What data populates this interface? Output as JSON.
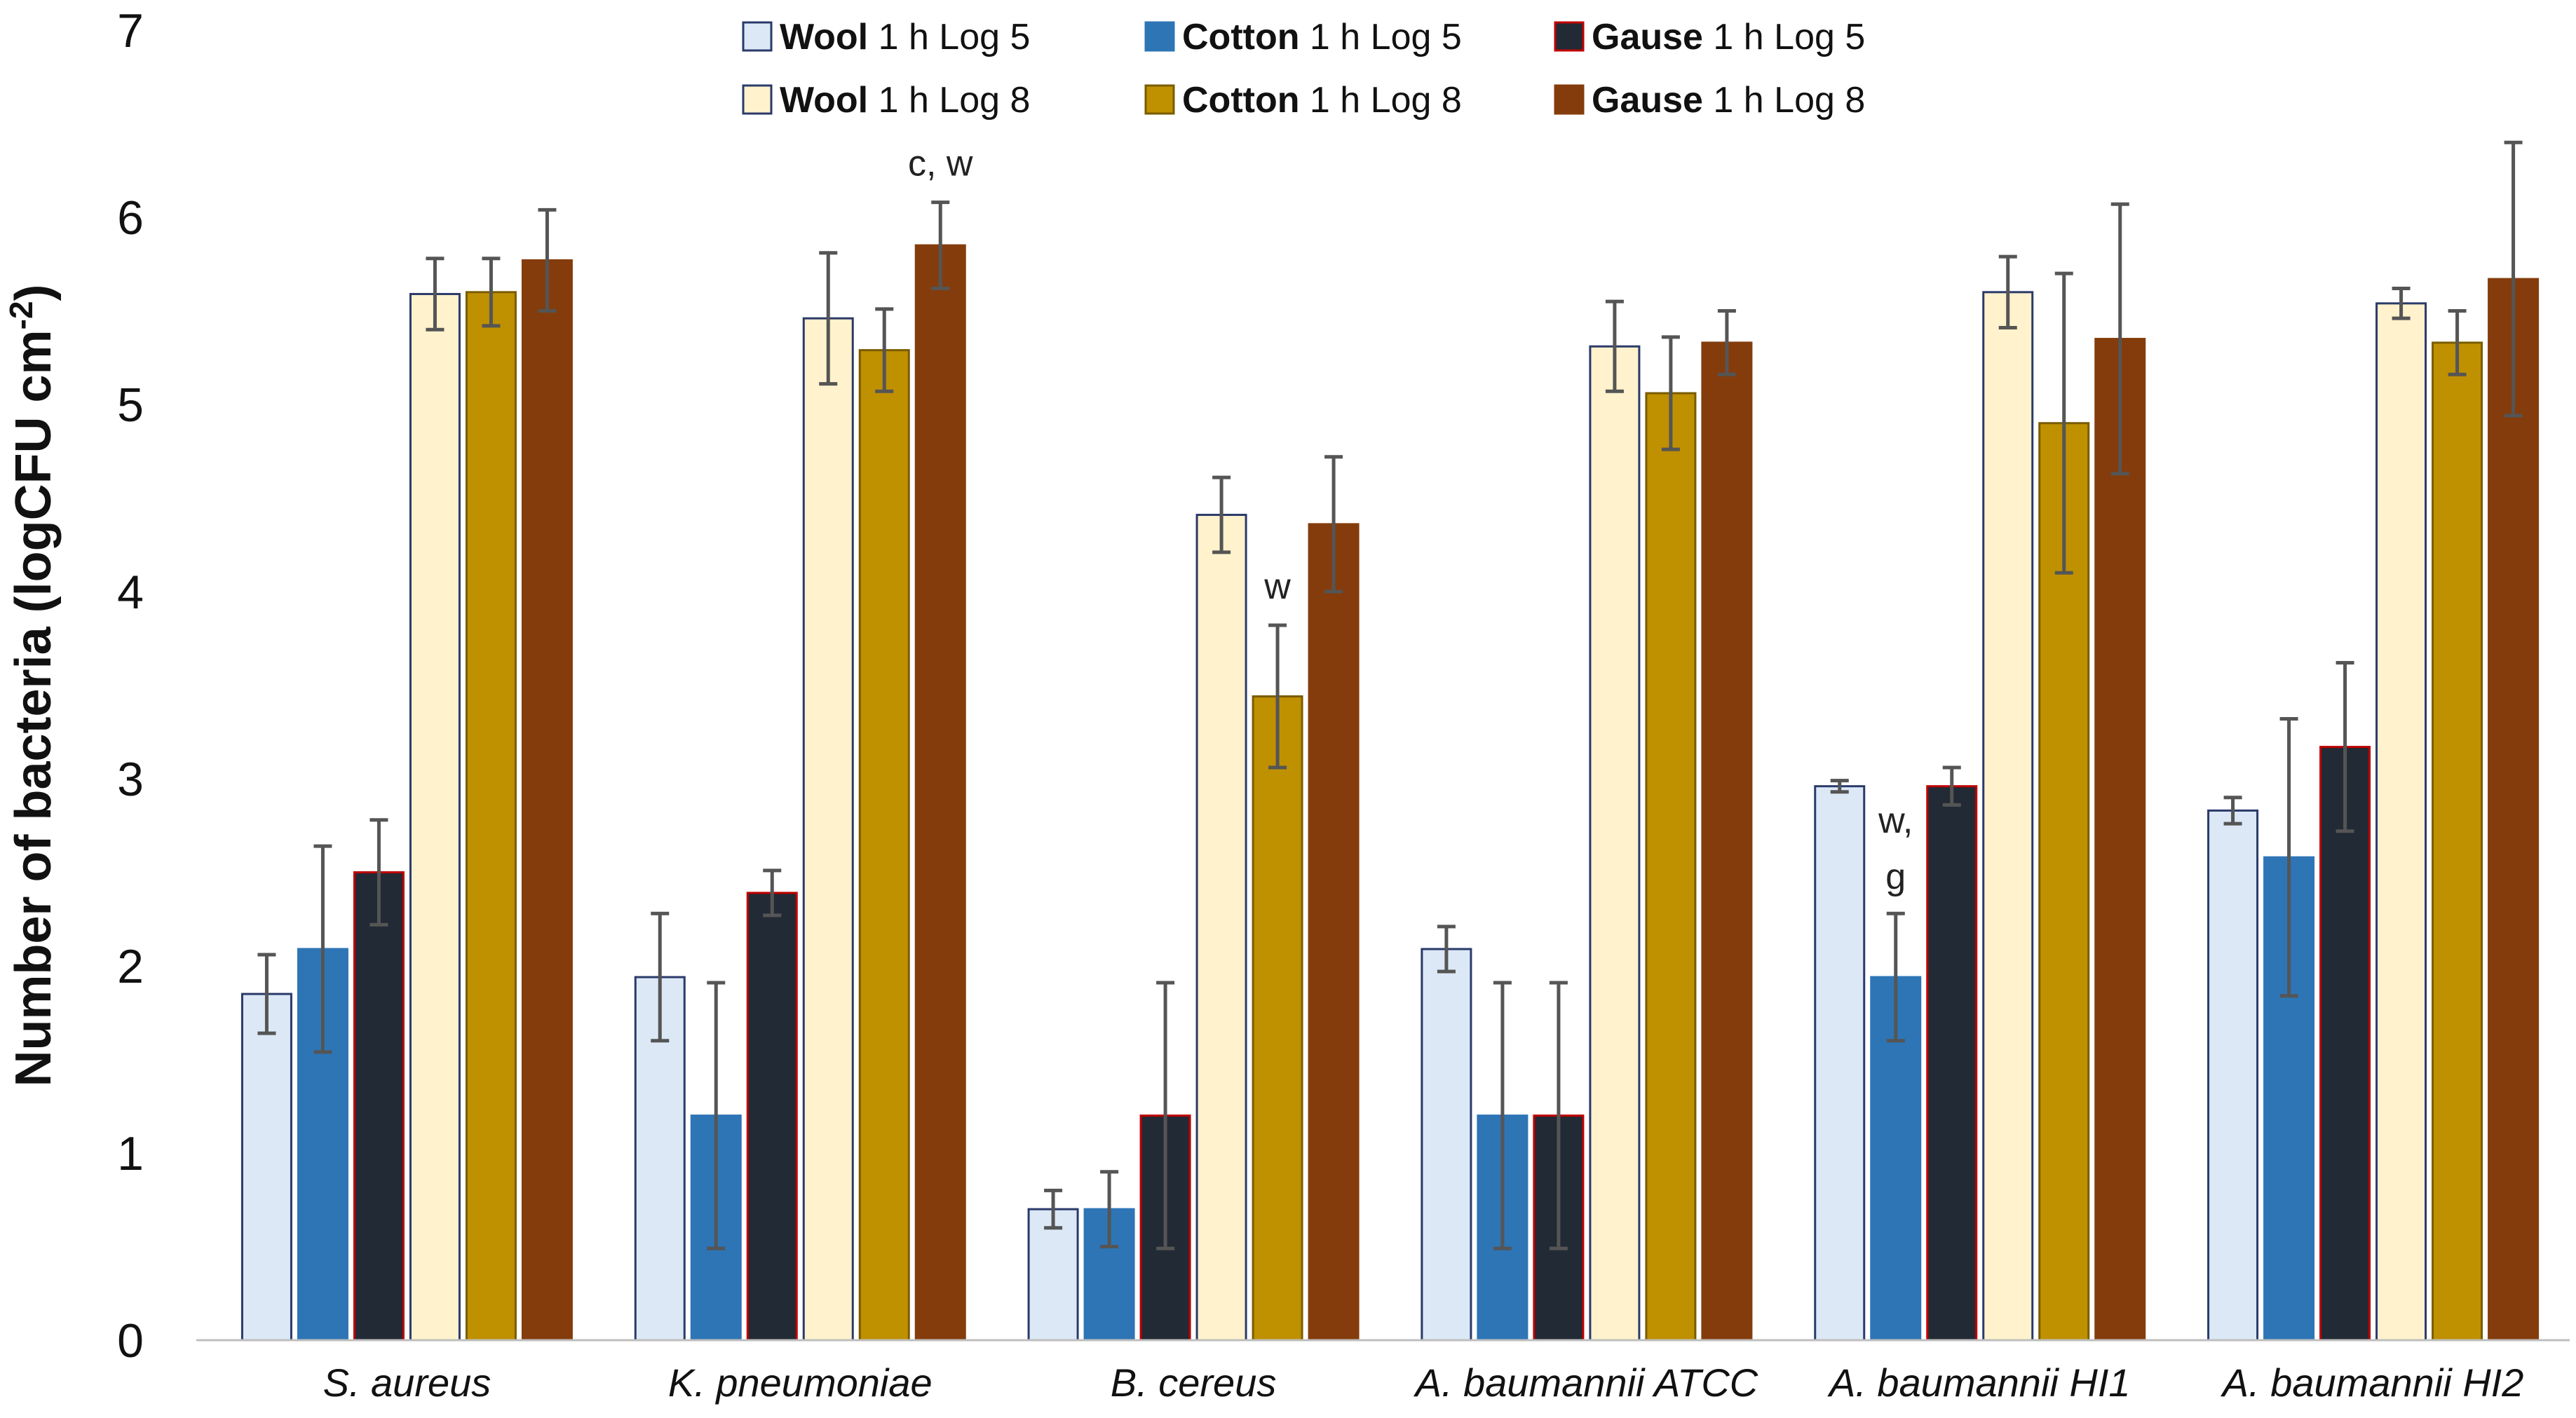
{
  "chart_data": {
    "type": "bar",
    "ylabel": "Number of bacteria (logCFU cm",
    "ylabel_sup": "-2",
    "ylabel_end": ")",
    "ylim": [
      0,
      7
    ],
    "yticks": [
      "0",
      "1",
      "2",
      "3",
      "4",
      "5",
      "6",
      "7"
    ],
    "grid": false,
    "legend_placement": "top-center",
    "categories": [
      "S. aureus",
      "K. pneumoniae",
      "B. cereus",
      "A. baumannii ATCC",
      "A. baumannii HI1",
      "A. baumannii HI2"
    ],
    "series": [
      {
        "name": "Wool",
        "detail": "1 h Log 5",
        "color": "#dce8f6",
        "stroke": "#2a3a6a",
        "values": [
          1.85,
          1.94,
          0.7,
          2.09,
          2.96,
          2.83
        ],
        "errors": [
          0.21,
          0.34,
          0.1,
          0.12,
          0.03,
          0.07
        ]
      },
      {
        "name": "Cotton",
        "detail": "1 h Log 5",
        "color": "#2e75b6",
        "stroke": "#2e75b6",
        "values": [
          2.09,
          1.2,
          0.7,
          1.2,
          1.94,
          2.58
        ],
        "errors": [
          0.55,
          0.71,
          0.2,
          0.71,
          0.34,
          0.74
        ]
      },
      {
        "name": "Gause",
        "detail": "1 h Log 5",
        "color": "#222a35",
        "stroke": "#c00000",
        "values": [
          2.5,
          2.39,
          1.2,
          1.2,
          2.96,
          3.17
        ],
        "errors": [
          0.28,
          0.12,
          0.71,
          0.71,
          0.1,
          0.45
        ]
      },
      {
        "name": "Wool",
        "detail": "1 h Log 8",
        "color": "#fff2cc",
        "stroke": "#2a3a6a",
        "values": [
          5.59,
          5.46,
          4.41,
          5.31,
          5.6,
          5.54
        ],
        "errors": [
          0.19,
          0.35,
          0.2,
          0.24,
          0.19,
          0.08
        ]
      },
      {
        "name": "Cotton",
        "detail": "1 h Log 8",
        "color": "#bf9000",
        "stroke": "#7a5c00",
        "values": [
          5.6,
          5.29,
          3.44,
          5.06,
          4.9,
          5.33
        ],
        "errors": [
          0.18,
          0.22,
          0.38,
          0.3,
          0.8,
          0.17
        ]
      },
      {
        "name": "Gause",
        "detail": "1 h Log 8",
        "color": "#843c0c",
        "stroke": "#843c0c",
        "values": [
          5.77,
          5.85,
          4.36,
          5.33,
          5.35,
          5.67
        ],
        "errors": [
          0.27,
          0.23,
          0.36,
          0.17,
          0.72,
          0.73
        ]
      }
    ],
    "annotations": [
      {
        "text": "c, w",
        "category": 1,
        "series": 5
      },
      {
        "text": "w",
        "category": 2,
        "series": 4
      },
      {
        "text": "w,",
        "category": 4,
        "series": 1,
        "line": 0
      },
      {
        "text": "g",
        "category": 4,
        "series": 1,
        "line": 1
      }
    ]
  }
}
